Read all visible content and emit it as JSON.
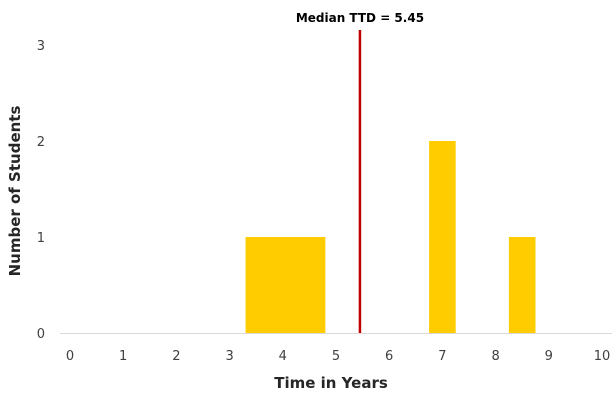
{
  "chart_data": {
    "type": "bar",
    "title": "",
    "xlabel": "Time in Years",
    "ylabel": "Number of Students",
    "xlim": [
      0,
      10
    ],
    "ylim": [
      0,
      3
    ],
    "x_ticks": [
      "0",
      "1",
      "2",
      "3",
      "4",
      "5",
      "6",
      "7",
      "8",
      "9",
      "10"
    ],
    "y_ticks": [
      "0",
      "1",
      "2",
      "3"
    ],
    "grid": false,
    "bars": [
      {
        "x_start": 3.3,
        "x_end": 4.8,
        "value": 1
      },
      {
        "x_start": 6.75,
        "x_end": 7.25,
        "value": 2
      },
      {
        "x_start": 8.25,
        "x_end": 8.75,
        "value": 1
      }
    ],
    "median": {
      "value": 5.45,
      "label": "Median TTD = 5.45"
    },
    "colors": {
      "bar": "#FFCC00",
      "median_line": "#C00000",
      "axis": "#D9D9D9"
    }
  }
}
